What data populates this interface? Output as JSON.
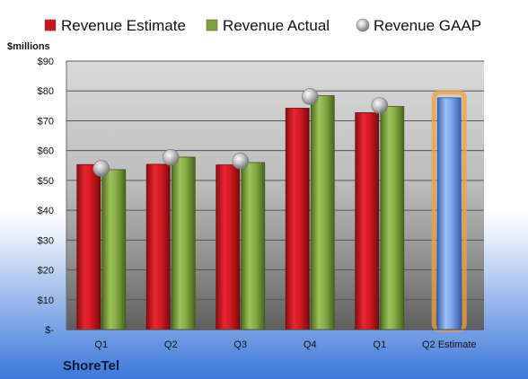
{
  "chart_data": {
    "type": "bar",
    "company": "ShoreTel",
    "unit_label": "$millions",
    "categories": [
      "Q1",
      "Q2",
      "Q3",
      "Q4",
      "Q1",
      "Q2 Estimate"
    ],
    "series": [
      {
        "name": "Revenue Estimate",
        "type": "bar",
        "color": "#c8161d",
        "values": [
          55.3,
          55.4,
          55.2,
          74.2,
          72.7,
          null
        ]
      },
      {
        "name": "Revenue Actual",
        "type": "bar",
        "color": "#7da33e",
        "values": [
          53.6,
          57.8,
          56.0,
          78.4,
          74.8,
          null
        ]
      },
      {
        "name": "Revenue GAAP",
        "type": "marker",
        "color": "#a9a9a9",
        "values": [
          54.0,
          57.7,
          56.5,
          78.1,
          75.1,
          null
        ]
      }
    ],
    "estimate_bar": {
      "category": "Q2 Estimate",
      "value": 77.7,
      "color": "#6f9be0",
      "highlight_color": "#f2a040"
    },
    "ylim": [
      0,
      90
    ],
    "yticks": [
      0,
      10,
      20,
      30,
      40,
      50,
      60,
      70,
      80,
      90
    ],
    "ytick_labels": [
      "$-",
      "$10",
      "$20",
      "$30",
      "$40",
      "$50",
      "$60",
      "$70",
      "$80",
      "$90"
    ],
    "grid": true,
    "legend_position": "top"
  }
}
